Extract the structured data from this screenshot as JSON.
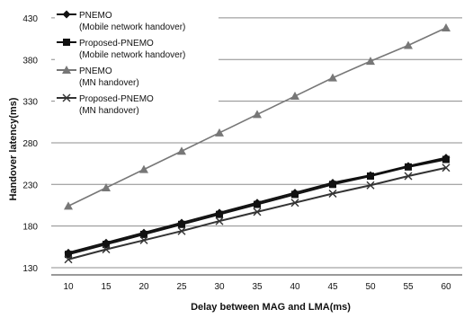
{
  "chart_data": {
    "type": "line",
    "title": "",
    "xlabel": "Delay between  MAG and LMA(ms)",
    "ylabel": "Handover latency(ms)",
    "x": [
      10,
      15,
      20,
      25,
      30,
      35,
      40,
      45,
      50,
      55,
      60
    ],
    "xticks": [
      10,
      15,
      20,
      25,
      30,
      35,
      40,
      45,
      50,
      55,
      60
    ],
    "yticks": [
      130,
      180,
      230,
      280,
      330,
      380,
      430
    ],
    "ylim": [
      130,
      445
    ],
    "grid": "horizontal",
    "legend_position": "top-left",
    "series": [
      {
        "name_line1": "PNEMO",
        "name_line2": "(Mobile network handover)",
        "marker": "diamond",
        "color": "#111111",
        "values": [
          148,
          160,
          172,
          184,
          196,
          208,
          220,
          232,
          241,
          252,
          262
        ]
      },
      {
        "name_line1": "Proposed-PNEMO",
        "name_line2": "(Mobile network handover)",
        "marker": "square",
        "color": "#111111",
        "values": [
          146,
          158,
          170,
          182,
          194,
          206,
          218,
          230,
          240,
          251,
          260
        ]
      },
      {
        "name_line1": "PNEMO",
        "name_line2": "(MN handover)",
        "marker": "triangle",
        "color": "#777777",
        "values": [
          204,
          226,
          248,
          270,
          292,
          314,
          336,
          358,
          378,
          397,
          418
        ]
      },
      {
        "name_line1": "Proposed-PNEMO",
        "name_line2": "(MN handover)",
        "marker": "x",
        "color": "#333333",
        "values": [
          140,
          152,
          163,
          174,
          186,
          197,
          208,
          219,
          229,
          240,
          250
        ]
      }
    ]
  }
}
